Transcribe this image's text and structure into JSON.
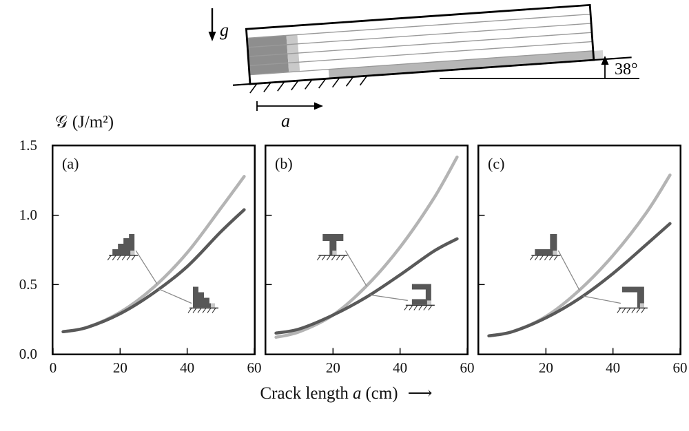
{
  "schematic": {
    "gravity_label": "g",
    "angle_label": "38°",
    "crack_label": "a"
  },
  "axes": {
    "ylabel_symbol": "𝒢",
    "ylabel_unit": "(J/m²)",
    "xlabel_pre": "Crack length",
    "xlabel_var": "a",
    "xlabel_post": "(cm)",
    "xlabel_arrow": "⟶"
  },
  "colors": {
    "light_curve": "#b4b4b4",
    "dark_curve": "#595959",
    "shape_fill": "#575757",
    "shape_tip": "#c8c8c8",
    "connector": "#8a8a8a",
    "axis": "#000000",
    "block_dark": "#8e8e8e",
    "block_mid": "#b7b7b7",
    "block_light": "#c9c9c9"
  },
  "chart_data": {
    "type": "line",
    "xlim": [
      0,
      60
    ],
    "ylim": [
      0,
      1.5
    ],
    "ytick_values": [
      1.5,
      1.0,
      0.5,
      0.0
    ],
    "ytick_labels": [
      "1.5",
      "1.0",
      "0.5",
      "0.0"
    ],
    "x": [
      3,
      10,
      20,
      30,
      40,
      50,
      57
    ],
    "panels": [
      {
        "label": "(a)",
        "xticks": [
          0,
          20,
          40,
          60
        ],
        "xtick_labels": [
          "0",
          "20",
          "40",
          "60"
        ],
        "series": [
          {
            "name": "upper-light",
            "color_key": "light_curve",
            "values": [
              0.16,
              0.19,
              0.3,
              0.48,
              0.73,
              1.05,
              1.28
            ]
          },
          {
            "name": "lower-dark",
            "color_key": "dark_curve",
            "values": [
              0.16,
              0.19,
              0.29,
              0.44,
              0.63,
              0.88,
              1.04
            ]
          }
        ],
        "insets": [
          {
            "icon": "staircase-up",
            "x": 21,
            "y": 0.78,
            "attach_x": 31,
            "attach_series": 0,
            "side": "right"
          },
          {
            "icon": "staircase-down",
            "x": 45,
            "y": 0.4,
            "attach_x": 31.5,
            "attach_series": 1,
            "side": "left"
          }
        ]
      },
      {
        "label": "(b)",
        "xticks": [
          20,
          40,
          60
        ],
        "xtick_labels": [
          "20",
          "40",
          "60"
        ],
        "series": [
          {
            "name": "upper-light",
            "color_key": "light_curve",
            "values": [
              0.12,
              0.16,
              0.28,
              0.49,
              0.77,
              1.12,
              1.42
            ]
          },
          {
            "name": "lower-dark",
            "color_key": "dark_curve",
            "values": [
              0.15,
              0.18,
              0.28,
              0.41,
              0.57,
              0.74,
              0.83
            ]
          }
        ],
        "insets": [
          {
            "icon": "tee",
            "x": 20,
            "y": 0.78,
            "attach_x": 30,
            "attach_series": 0,
            "side": "right"
          },
          {
            "icon": "bracket",
            "x": 46,
            "y": 0.42,
            "attach_x": 31,
            "attach_series": 1,
            "side": "left"
          }
        ]
      },
      {
        "label": "(c)",
        "xticks": [
          20,
          40,
          60
        ],
        "xtick_labels": [
          "20",
          "40",
          "60"
        ],
        "series": [
          {
            "name": "upper-light",
            "color_key": "light_curve",
            "values": [
              0.13,
              0.16,
              0.27,
              0.46,
              0.71,
              1.02,
              1.29
            ]
          },
          {
            "name": "lower-dark",
            "color_key": "dark_curve",
            "values": [
              0.13,
              0.16,
              0.26,
              0.4,
              0.58,
              0.79,
              0.94
            ]
          }
        ],
        "insets": [
          {
            "icon": "el-column-right",
            "x": 20,
            "y": 0.78,
            "attach_x": 30,
            "attach_series": 0,
            "side": "right"
          },
          {
            "icon": "el-top-bar",
            "x": 46,
            "y": 0.4,
            "attach_x": 31,
            "attach_series": 1,
            "side": "left"
          }
        ]
      }
    ]
  }
}
